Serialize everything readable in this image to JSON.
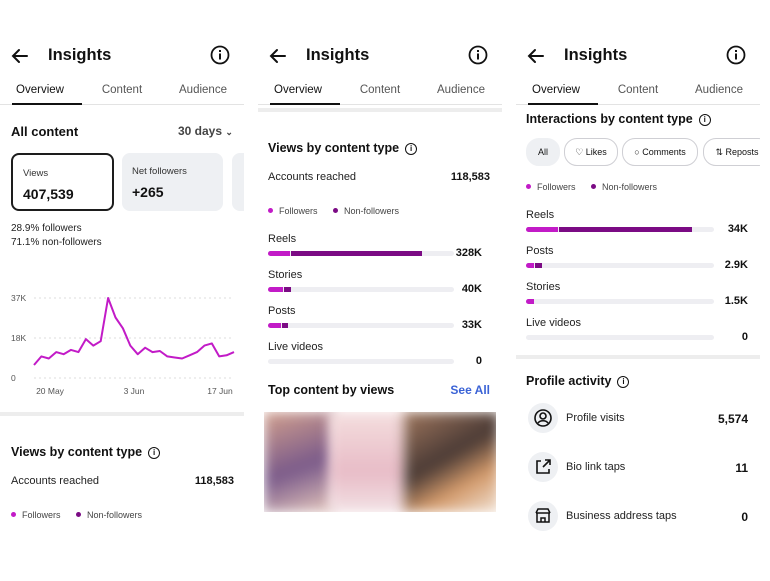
{
  "common": {
    "title": "Insights",
    "tabs": [
      "Overview",
      "Content",
      "Audience"
    ],
    "colors": {
      "followers": "#c21bc7",
      "non_followers": "#7b0b84",
      "line": "#c21bc7"
    }
  },
  "panel1": {
    "heading": "All content",
    "range": "30 days",
    "cards": [
      {
        "label": "Views",
        "value": "407,539"
      },
      {
        "label": "Net followers",
        "value": "+265"
      }
    ],
    "followers_pct": "28.9% followers",
    "nonfollowers_pct": "71.1% non-followers",
    "chart_data": {
      "type": "line",
      "x_tick_labels": [
        "20 May",
        "3 Jun",
        "17 Jun"
      ],
      "y_tick_labels": [
        "37K",
        "18K",
        "0"
      ],
      "ylim": [
        0,
        37000
      ],
      "grid": "horizontal dashed",
      "series": [
        {
          "values": [
            6000,
            10000,
            9000,
            12000,
            11000,
            13000,
            12000,
            18000,
            15000,
            17000,
            38000,
            28000,
            23000,
            15000,
            11000,
            14000,
            12000,
            12500,
            10000,
            9500,
            9000,
            10500,
            12000,
            15000,
            16000,
            10000,
            10500,
            12000
          ]
        }
      ]
    },
    "views_by_type_heading": "Views by content type",
    "accounts_reached_label": "Accounts reached",
    "accounts_reached_value": "118,583",
    "legend": [
      "Followers",
      "Non-followers"
    ]
  },
  "panel2": {
    "heading": "Views by content type",
    "accounts_reached_label": "Accounts reached",
    "accounts_reached_value": "118,583",
    "legend": [
      "Followers",
      "Non-followers"
    ],
    "rows": [
      {
        "label": "Reels",
        "value": "328K",
        "followers_frac": 0.12,
        "total_frac": 0.82
      },
      {
        "label": "Stories",
        "value": "40K",
        "followers_frac": 0.08,
        "total_frac": 0.12
      },
      {
        "label": "Posts",
        "value": "33K",
        "followers_frac": 0.07,
        "total_frac": 0.1
      },
      {
        "label": "Live videos",
        "value": "0",
        "followers_frac": 0,
        "total_frac": 0
      }
    ],
    "top_content_heading": "Top content by views",
    "see_all": "See All"
  },
  "panel3": {
    "heading": "Interactions by content type",
    "chips": [
      "All",
      "Likes",
      "Comments",
      "Reposts"
    ],
    "legend": [
      "Followers",
      "Non-followers"
    ],
    "rows": [
      {
        "label": "Reels",
        "value": "34K",
        "followers_frac": 0.17,
        "total_frac": 0.88
      },
      {
        "label": "Posts",
        "value": "2.9K",
        "followers_frac": 0.04,
        "total_frac": 0.08
      },
      {
        "label": "Stories",
        "value": "1.5K",
        "followers_frac": 0.04,
        "total_frac": 0.04
      },
      {
        "label": "Live videos",
        "value": "0",
        "followers_frac": 0,
        "total_frac": 0
      }
    ],
    "profile_heading": "Profile activity",
    "activities": [
      {
        "label": "Profile visits",
        "value": "5,574",
        "icon": "person-circle-icon"
      },
      {
        "label": "Bio link taps",
        "value": "11",
        "icon": "external-link-icon"
      },
      {
        "label": "Business address taps",
        "value": "0",
        "icon": "storefront-icon"
      }
    ]
  }
}
